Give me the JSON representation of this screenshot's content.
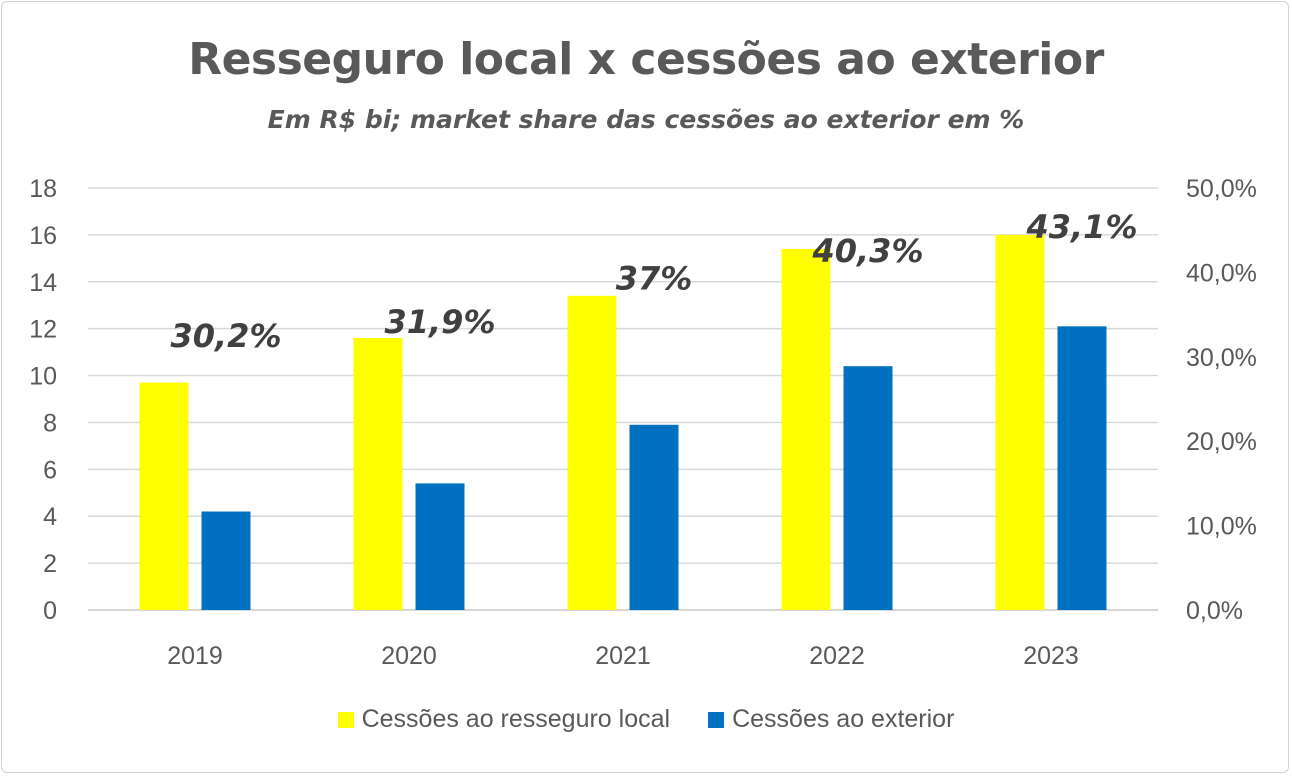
{
  "chart_data": {
    "type": "bar",
    "title": "Resseguro local x cessões ao exterior",
    "subtitle": "Em R$ bi; market share das cessões ao exterior em %",
    "categories": [
      "2019",
      "2020",
      "2021",
      "2022",
      "2023"
    ],
    "series": [
      {
        "name": "Cessões ao resseguro local",
        "color": "#FFFF00",
        "values": [
          9.7,
          11.6,
          13.4,
          15.4,
          16.0
        ]
      },
      {
        "name": "Cessões ao exterior",
        "color": "#0070C0",
        "values": [
          4.2,
          5.4,
          7.9,
          10.4,
          12.1
        ]
      }
    ],
    "market_share": {
      "values": [
        30.2,
        31.9,
        37,
        40.3,
        43.1
      ],
      "labels": [
        "30,2%",
        "31,9%",
        "37%",
        "40,3%",
        "43,1%"
      ]
    },
    "y_left": {
      "ylim": [
        0,
        18
      ],
      "ticks": [
        "0",
        "2",
        "4",
        "6",
        "8",
        "10",
        "12",
        "14",
        "16",
        "18"
      ]
    },
    "y_right": {
      "ylim": [
        0,
        50
      ],
      "ticks": [
        "0,0%",
        "10,0%",
        "20,0%",
        "30,0%",
        "40,0%",
        "50,0%"
      ]
    },
    "grid": true,
    "legend_position": "bottom"
  }
}
